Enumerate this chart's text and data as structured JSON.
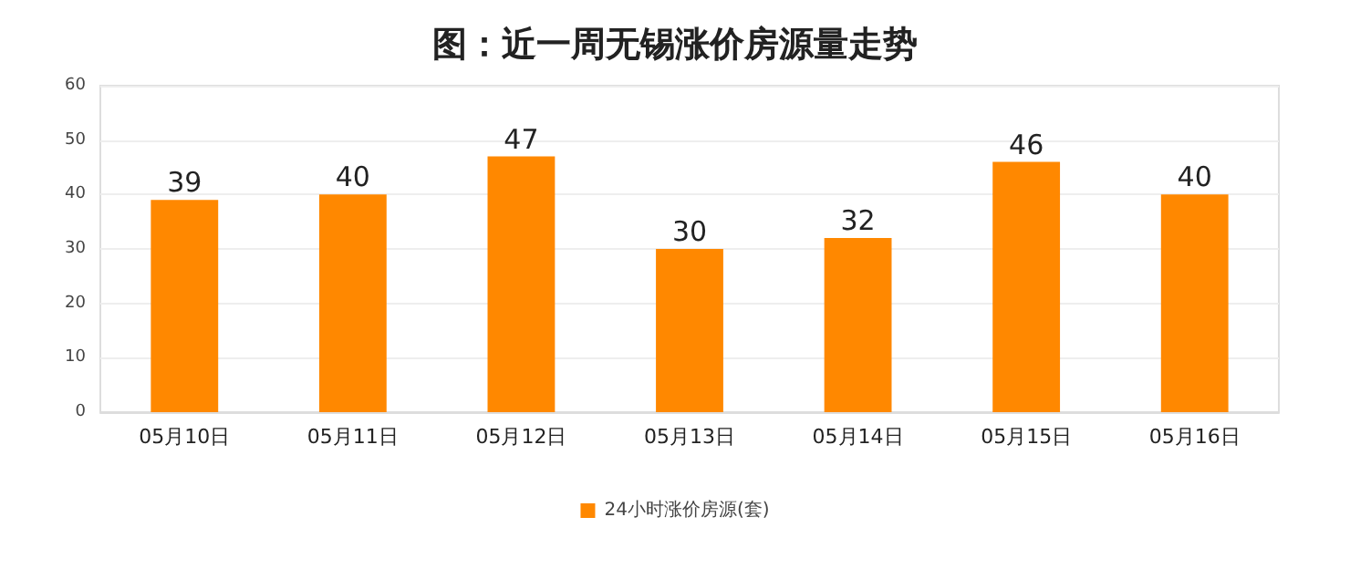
{
  "chart_data": {
    "type": "bar",
    "title": "图：近一周无锡涨价房源量走势",
    "categories": [
      "05月10日",
      "05月11日",
      "05月12日",
      "05月13日",
      "05月14日",
      "05月15日",
      "05月16日"
    ],
    "series": [
      {
        "name": "24小时涨价房源(套)",
        "color": "#ff8800",
        "values": [
          39,
          40,
          47,
          30,
          32,
          46,
          40
        ]
      }
    ],
    "ylim": [
      0,
      60
    ],
    "yticks": [
      0,
      10,
      20,
      30,
      40,
      50,
      60
    ],
    "grid": "y",
    "legend": "bottom",
    "data_labels": true
  }
}
